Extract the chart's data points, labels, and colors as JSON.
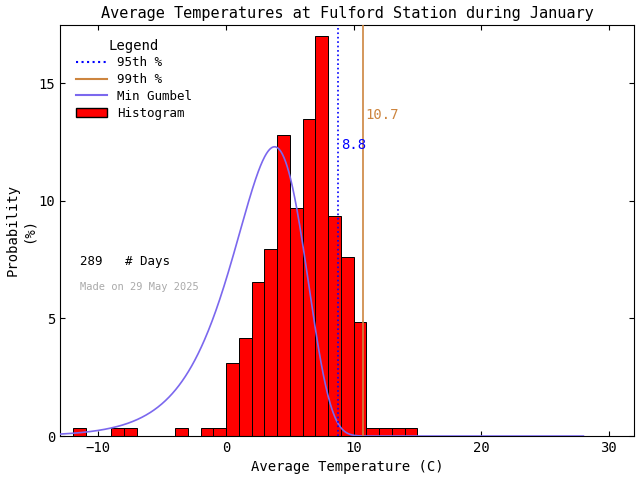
{
  "title": "Average Temperatures at Fulford Station during January",
  "xlabel": "Average Temperature (C)",
  "ylabel": "Probability\n(%)",
  "xlim": [
    -13,
    32
  ],
  "ylim": [
    0,
    17.5
  ],
  "xticks": [
    -10,
    0,
    10,
    20,
    30
  ],
  "yticks": [
    0,
    5,
    10,
    15
  ],
  "bin_edges": [
    -12,
    -11,
    -10,
    -9,
    -8,
    -7,
    -6,
    -5,
    -4,
    -3,
    -2,
    -1,
    0,
    1,
    2,
    3,
    4,
    5,
    6,
    7,
    8,
    9,
    10,
    11,
    12,
    13,
    14
  ],
  "bin_heights": [
    0.35,
    0.0,
    0.0,
    0.35,
    0.35,
    0.0,
    0.0,
    0.0,
    0.35,
    0.0,
    0.35,
    0.35,
    3.11,
    4.15,
    6.57,
    7.96,
    12.8,
    9.69,
    13.49,
    17.0,
    9.34,
    7.61,
    4.84,
    0.35,
    0.35,
    0.35,
    0.35
  ],
  "bar_color": "#ff0000",
  "bar_edgecolor": "#000000",
  "percentile_95": 8.8,
  "percentile_99": 10.7,
  "percentile_95_color": "#0000ff",
  "percentile_99_color": "#cd853f",
  "gumbel_mu": 3.8,
  "gumbel_beta": 2.8,
  "gumbel_scale": 12.3,
  "gumbel_color": "#7b68ee",
  "n_days": 289,
  "made_on": "Made on 29 May 2025",
  "made_on_color": "#aaaaaa",
  "background_color": "#ffffff",
  "title_fontsize": 11,
  "label_fontsize": 10,
  "tick_fontsize": 10,
  "legend_fontsize": 9,
  "annotation_fontsize": 9,
  "p_label_fontsize": 10
}
